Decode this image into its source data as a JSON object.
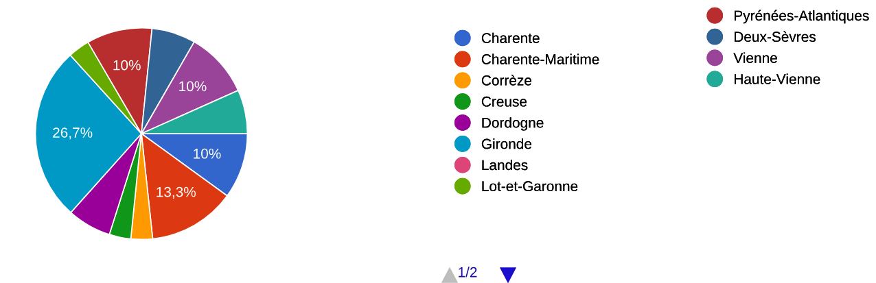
{
  "chart_data": {
    "type": "pie",
    "categories": [
      "Charente",
      "Charente-Maritime",
      "Corrèze",
      "Creuse",
      "Dordogne",
      "Gironde",
      "Landes",
      "Lot-et-Garonne",
      "Pyrénées-Atlantiques",
      "Deux-Sèvres",
      "Vienne",
      "Haute-Vienne"
    ],
    "values": [
      10,
      13.3,
      3.3,
      3.3,
      6.7,
      26.7,
      0,
      3.3,
      10,
      6.7,
      10,
      6.7
    ],
    "value_labels": [
      "10%",
      "13,3%",
      null,
      null,
      null,
      "26,7%",
      null,
      null,
      "10%",
      null,
      "10%",
      null
    ],
    "colors": [
      "#3366cc",
      "#dc3912",
      "#ff9900",
      "#109618",
      "#990099",
      "#0099c6",
      "#dd4477",
      "#66aa00",
      "#b82e2e",
      "#316395",
      "#994499",
      "#22aa99"
    ],
    "legend": "right",
    "annotations": [
      "1/2"
    ]
  }
}
